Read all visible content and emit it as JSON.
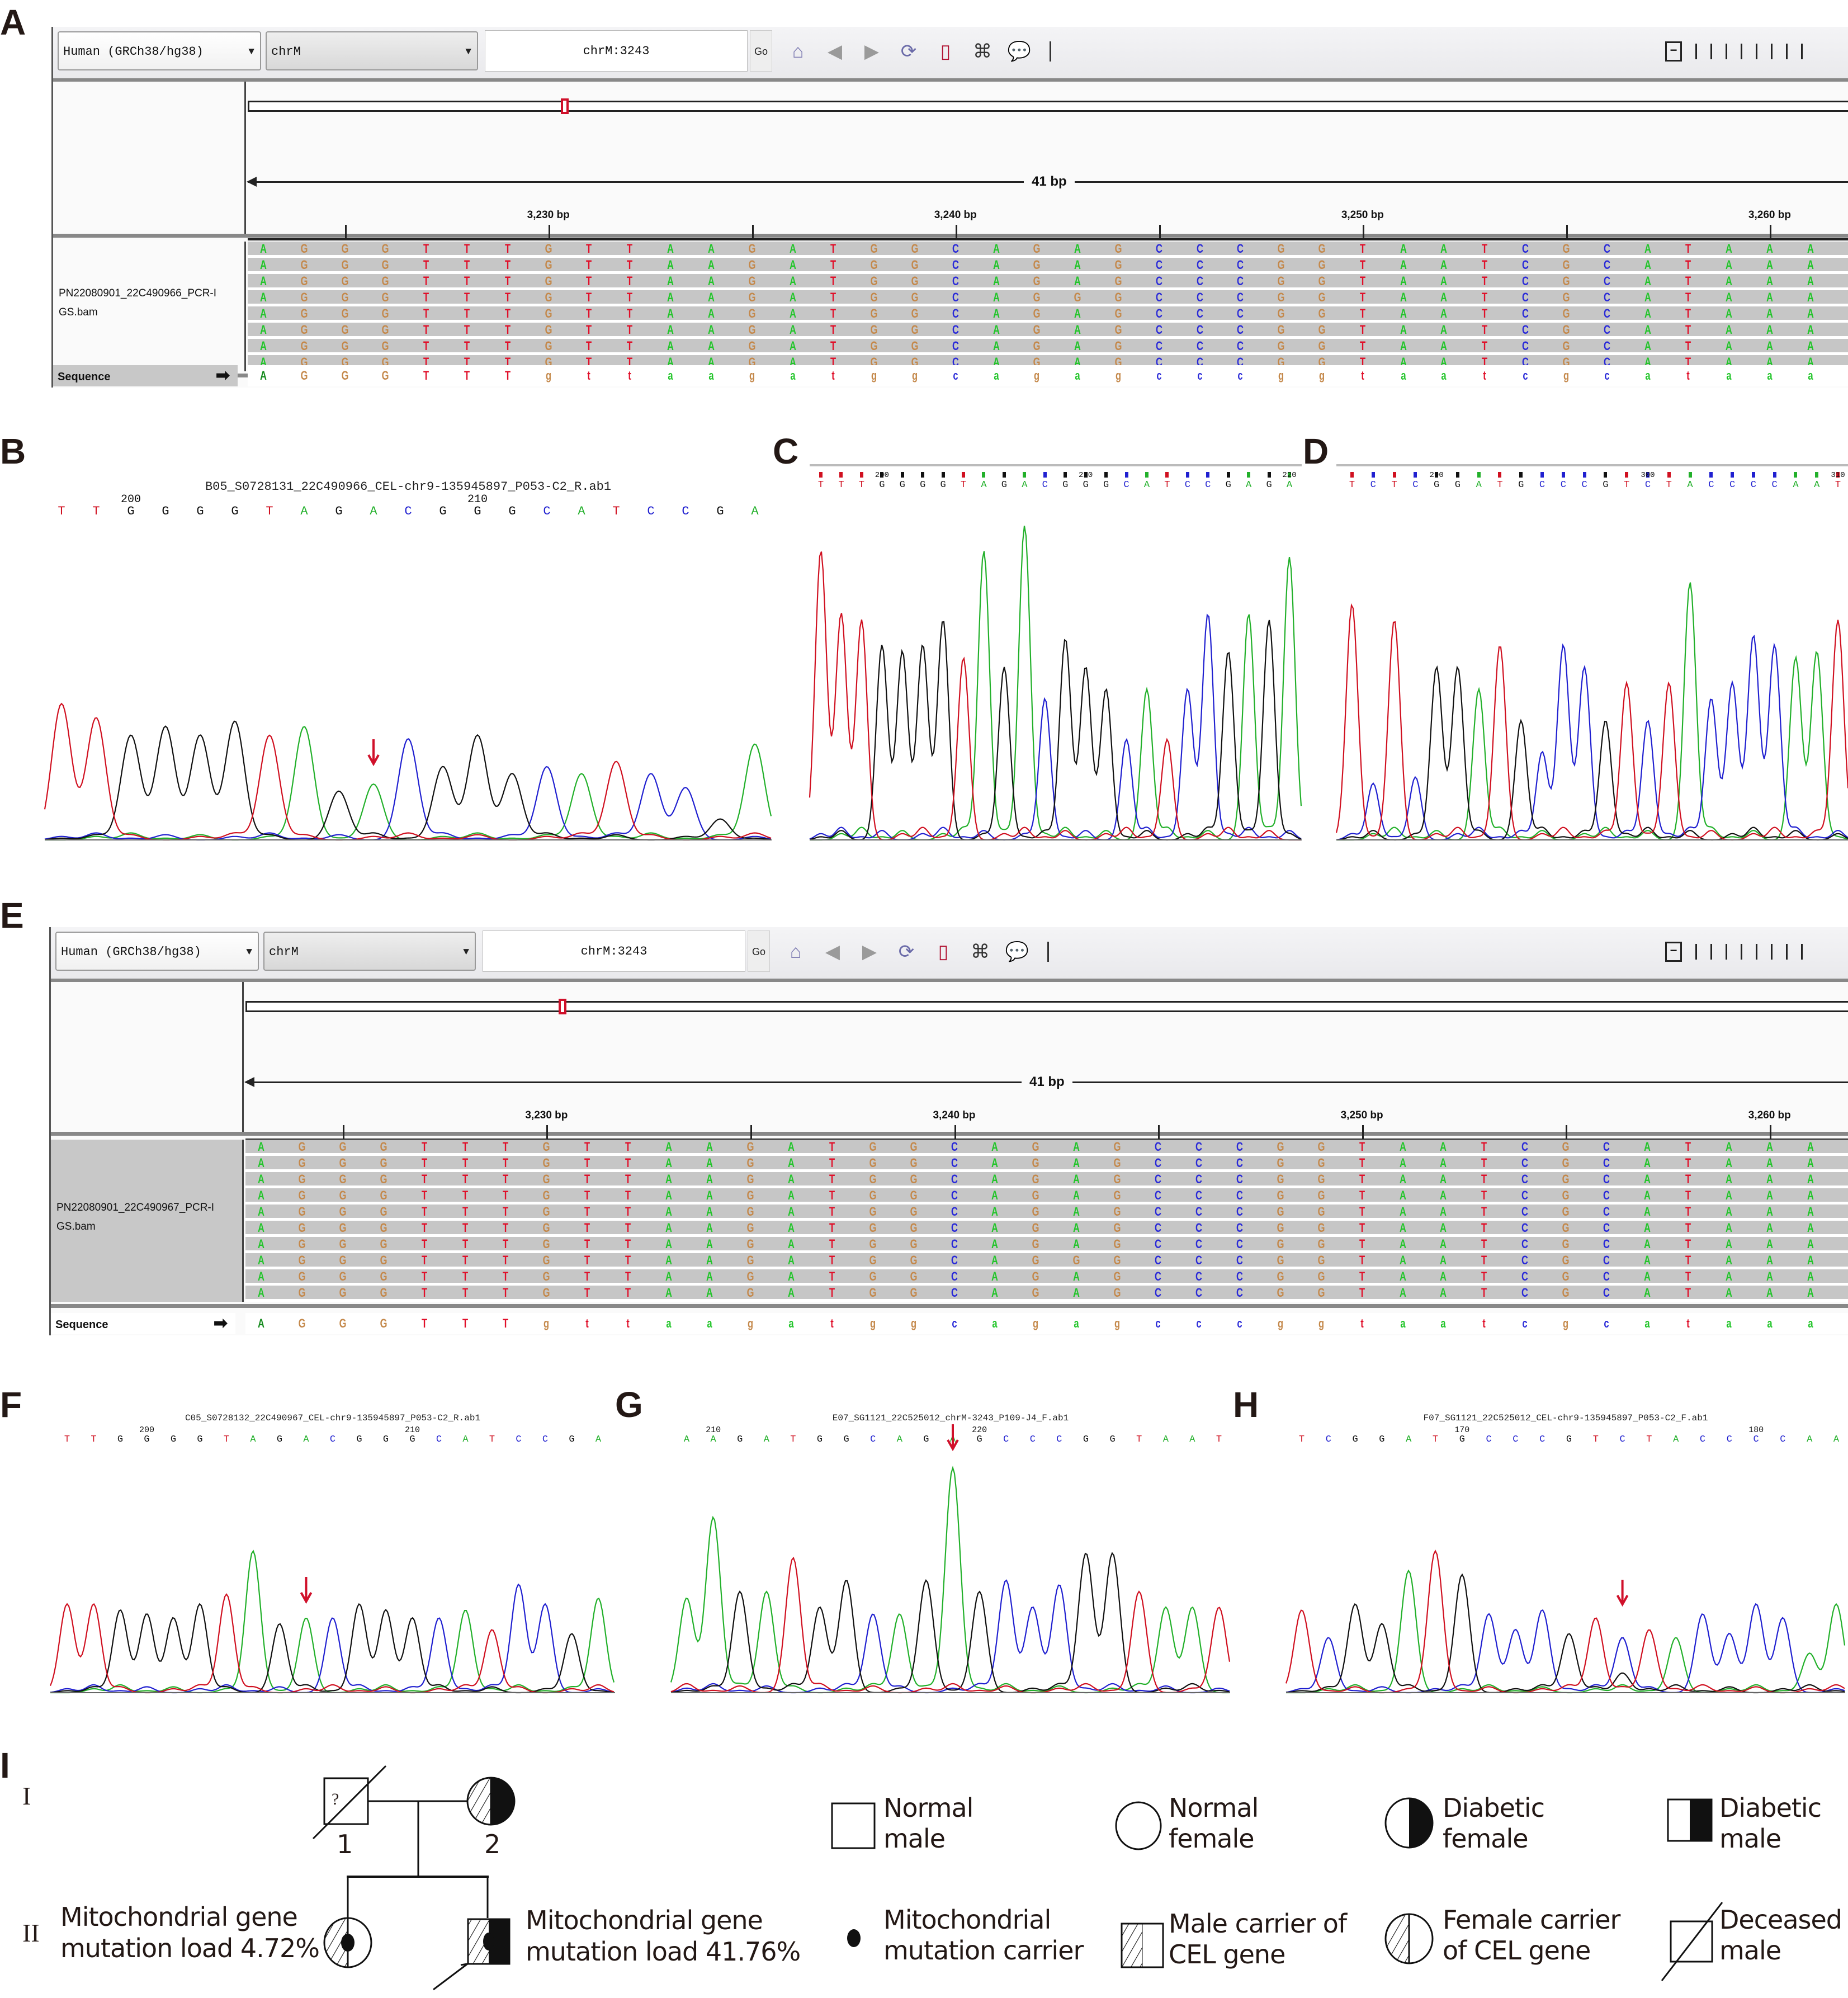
{
  "panels": {
    "A": "A",
    "B": "B",
    "C": "C",
    "D": "D",
    "E": "E",
    "F": "F",
    "G": "G",
    "H": "H",
    "I": "I"
  },
  "igv": [
    {
      "genome": "Human (GRCh38/hg38)",
      "chromosome": "chrM",
      "locus": "chrM:3243",
      "go_label": "Go",
      "span_label": "41 bp",
      "ticks": [
        "3,230 bp",
        "3,240 bp",
        "3,250 bp",
        "3,260 bp"
      ],
      "track_name_line1": "PN22080901_22C490966_PCR-I",
      "track_name_line2": "GS.bam",
      "sequence_label": "Sequence",
      "read_count": 8,
      "mutant_read_rows": [
        3
      ],
      "mutant_base": "G",
      "reference": "AGGGTTTgttaagatggcagagcccggtaatcgcataaa",
      "reads_visible": "AGGGTTTGTTAAGATGGCAGAGCCCGGTAATCGCATAAA"
    },
    {
      "genome": "Human (GRCh38/hg38)",
      "chromosome": "chrM",
      "locus": "chrM:3243",
      "go_label": "Go",
      "span_label": "41 bp",
      "ticks": [
        "3,230 bp",
        "3,240 bp",
        "3,250 bp",
        "3,260 bp"
      ],
      "track_name_line1": "PN22080901_22C490967_PCR-I",
      "track_name_line2": "GS.bam",
      "sequence_label": "Sequence",
      "read_count": 10,
      "mutant_read_rows": [
        7
      ],
      "mutant_base": "G",
      "reference": "AGGGTTTgttaagatggcagagcccggtaatcgcataaa",
      "reads_visible": "AGGGTTTGTTAAGATGGCAGAGCCCGGTAATCGCATAAA"
    }
  ],
  "toolbar_icons": [
    "home-icon",
    "back-icon",
    "forward-icon",
    "refresh-icon",
    "region-icon",
    "resize-icon",
    "popup-icon"
  ],
  "chromatograms": {
    "B": {
      "title": "B05_S0728131_22C490966_CEL-chr9-135945897_P053-C2_R.ab1",
      "bases": [
        "T",
        "T",
        "G",
        "G",
        "G",
        "G",
        "T",
        "A",
        "G",
        "A",
        "C",
        "G",
        "G",
        "G",
        "C",
        "A",
        "T",
        "C",
        "C",
        "G",
        "A"
      ],
      "numbers": [
        {
          "label": "200",
          "index": 2
        },
        {
          "label": "210",
          "index": 12
        }
      ],
      "arrow_index": 9
    },
    "C": {
      "bases": [
        "T",
        "T",
        "T",
        "G",
        "G",
        "G",
        "G",
        "T",
        "A",
        "G",
        "A",
        "C",
        "G",
        "G",
        "G",
        "C",
        "A",
        "T",
        "C",
        "C",
        "G",
        "A",
        "G",
        "A"
      ],
      "numbers": [
        {
          "label": "200",
          "index": 3
        },
        {
          "label": "210",
          "index": 13
        },
        {
          "label": "220",
          "index": 23
        }
      ]
    },
    "D": {
      "bases": [
        "T",
        "C",
        "T",
        "C",
        "G",
        "G",
        "A",
        "T",
        "G",
        "C",
        "C",
        "C",
        "G",
        "T",
        "C",
        "T",
        "A",
        "C",
        "C",
        "C",
        "C",
        "A",
        "A",
        "T"
      ],
      "numbers": [
        {
          "label": "290",
          "index": 4
        },
        {
          "label": "300",
          "index": 14
        },
        {
          "label": "310",
          "index": 23
        }
      ]
    },
    "F": {
      "title": "C05_S0728132_22C490967_CEL-chr9-135945897_P053-C2_R.ab1",
      "bases": [
        "T",
        "T",
        "G",
        "G",
        "G",
        "G",
        "T",
        "A",
        "G",
        "A",
        "C",
        "G",
        "G",
        "G",
        "C",
        "A",
        "T",
        "C",
        "C",
        "G",
        "A"
      ],
      "numbers": [
        {
          "label": "200",
          "index": 3
        },
        {
          "label": "210",
          "index": 13
        }
      ],
      "arrow_index": 9
    },
    "G": {
      "title": "E07_SG1121_22C525012_chrM-3243_P109-J4_F.ab1",
      "bases": [
        "A",
        "A",
        "G",
        "A",
        "T",
        "G",
        "G",
        "C",
        "A",
        "G",
        "A",
        "G",
        "C",
        "C",
        "C",
        "G",
        "G",
        "T",
        "A",
        "A",
        "T"
      ],
      "numbers": [
        {
          "label": "210",
          "index": 1
        },
        {
          "label": "220",
          "index": 11
        }
      ],
      "arrow_index": 10
    },
    "H": {
      "title": "F07_SG1121_22C525012_CEL-chr9-135945897_P053-C2_F.ab1",
      "bases": [
        "T",
        "C",
        "G",
        "G",
        "A",
        "T",
        "G",
        "C",
        "C",
        "C",
        "G",
        "T",
        "C",
        "T",
        "A",
        "C",
        "C",
        "C",
        "C",
        "A",
        "A"
      ],
      "numbers": [
        {
          "label": "170",
          "index": 6
        },
        {
          "label": "180",
          "index": 17
        }
      ],
      "arrow_index": 12
    }
  },
  "pedigree": {
    "generations": [
      "I",
      "II"
    ],
    "individuals": [
      {
        "id": "1",
        "label": "1",
        "symbol": "deceased-male-unknown",
        "mark": "?"
      },
      {
        "id": "2",
        "label": "2",
        "symbol": "female-cel-carrier-diabetic"
      }
    ],
    "proband_female_text": [
      "Mitochondrial gene",
      "mutation load 4.72%"
    ],
    "proband_male_text": [
      "Mitochondrial gene",
      "mutation load 41.76%"
    ],
    "legend": [
      {
        "symbol": "normal-male",
        "lines": [
          "Normal",
          "male"
        ]
      },
      {
        "symbol": "normal-female",
        "lines": [
          "Normal",
          "female"
        ]
      },
      {
        "symbol": "diabetic-female",
        "lines": [
          "Diabetic",
          "female"
        ]
      },
      {
        "symbol": "diabetic-male",
        "lines": [
          "Diabetic",
          "male"
        ]
      },
      {
        "symbol": "mito-carrier",
        "lines": [
          "Mitochondrial",
          "mutation carrier"
        ]
      },
      {
        "symbol": "male-cel-carrier",
        "lines": [
          "Male carrier of",
          "CEL gene"
        ]
      },
      {
        "symbol": "female-cel-carrier",
        "lines": [
          "Female carrier",
          "of CEL gene"
        ]
      },
      {
        "symbol": "deceased-male",
        "lines": [
          "Deceased",
          "male"
        ]
      }
    ]
  },
  "colors": {
    "A": "#22c52a",
    "G": "#c4884a",
    "T": "#e0102a",
    "C": "#2a2ad8",
    "trace_G": "#111111",
    "mutation_arrow": "#d0102a"
  }
}
